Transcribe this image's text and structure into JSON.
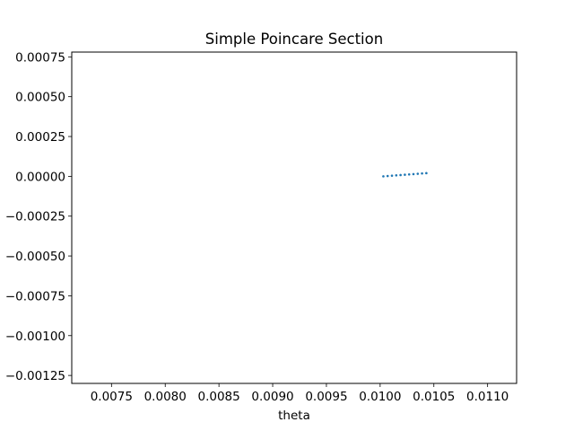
{
  "chart_data": {
    "type": "scatter",
    "title": "Simple Poincare Section",
    "xlabel": "theta",
    "ylabel": "",
    "xlim": [
      0.00713,
      0.01127
    ],
    "ylim": [
      -0.0013,
      0.00078
    ],
    "x_ticks": [
      0.0075,
      0.008,
      0.0085,
      0.009,
      0.0095,
      0.01,
      0.0105,
      0.011
    ],
    "x_tick_labels": [
      "0.0075",
      "0.0080",
      "0.0085",
      "0.0090",
      "0.0095",
      "0.0100",
      "0.0105",
      "0.0110"
    ],
    "y_ticks": [
      0.00075,
      0.0005,
      0.00025,
      0.0,
      -0.00025,
      -0.0005,
      -0.00075,
      -0.001,
      -0.00125
    ],
    "y_tick_labels": [
      "0.00075",
      "0.00050",
      "0.00025",
      "0.00000",
      "−0.00025",
      "−0.00050",
      "−0.00075",
      "−0.00100",
      "−0.00125"
    ],
    "grid": false,
    "series": [
      {
        "color": "#1f77b4",
        "x": [
          0.01003,
          0.01007,
          0.01011,
          0.01015,
          0.01019,
          0.01023,
          0.01027,
          0.01031,
          0.01035,
          0.01039,
          0.01043
        ],
        "y": [
          0.0,
          2e-06,
          4e-06,
          6e-06,
          8e-06,
          1e-05,
          1.2e-05,
          1.4e-05,
          1.6e-05,
          1.8e-05,
          2e-05
        ]
      }
    ]
  }
}
